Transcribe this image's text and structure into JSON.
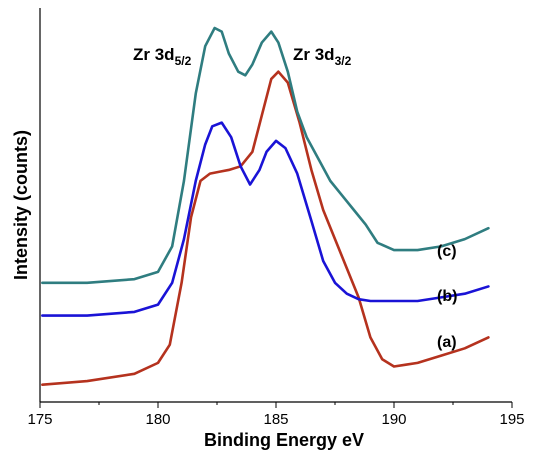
{
  "chart_data": {
    "type": "line",
    "title": "",
    "xlabel": "Binding Energy eV",
    "ylabel": "Intensity (counts)",
    "xlim": [
      175,
      195
    ],
    "ylim": [
      0,
      100
    ],
    "xticks": [
      "175",
      "180",
      "185",
      "190",
      "195"
    ],
    "yticks_shown": false,
    "grid": false,
    "legend": "none",
    "annotations": [
      {
        "base": "Zr 3d",
        "sub": "5/2",
        "x": 182.6
      },
      {
        "base": "Zr 3d",
        "sub": "3/2",
        "x": 185.6
      }
    ],
    "series": [
      {
        "name": "(a)",
        "color": "#b5321e",
        "x": [
          175.1,
          177,
          179,
          180,
          180.5,
          181,
          181.4,
          181.8,
          182.2,
          182.6,
          183,
          183.5,
          184,
          184.4,
          184.8,
          185.1,
          185.5,
          186,
          186.5,
          187,
          187.5,
          188,
          188.5,
          189,
          189.5,
          190,
          190.5,
          191,
          192,
          193,
          194
        ],
        "y": [
          2,
          3,
          5,
          8,
          13,
          30,
          48,
          58,
          60,
          60.5,
          61,
          62,
          66,
          76,
          86,
          88,
          85,
          74,
          61,
          50,
          42,
          34,
          26,
          15,
          9,
          7,
          7.5,
          8,
          10,
          12,
          15
        ]
      },
      {
        "name": "(b)",
        "color": "#1a13d6",
        "x": [
          175.1,
          177,
          179,
          180,
          180.6,
          181.1,
          181.6,
          182,
          182.3,
          182.7,
          183.1,
          183.5,
          183.9,
          184.3,
          184.6,
          185,
          185.4,
          185.9,
          186.5,
          187,
          187.5,
          188,
          188.5,
          189,
          190,
          191,
          192,
          193,
          194
        ],
        "y": [
          21,
          21,
          22,
          24,
          30,
          42,
          58,
          68,
          73,
          74,
          70,
          62,
          57,
          61,
          66,
          69,
          67,
          60,
          47,
          36,
          30,
          27,
          25.5,
          25,
          25,
          25,
          26,
          27,
          29
        ]
      },
      {
        "name": "(c)",
        "color": "#2f7d80",
        "x": [
          175.1,
          177,
          179,
          180,
          180.6,
          181.1,
          181.6,
          182,
          182.4,
          182.7,
          183,
          183.4,
          183.7,
          184,
          184.4,
          184.8,
          185.1,
          185.5,
          185.9,
          186.3,
          186.8,
          187.3,
          187.8,
          188.3,
          188.8,
          189.3,
          190,
          191,
          192,
          193,
          194
        ],
        "y": [
          30,
          30,
          31,
          33,
          40,
          58,
          82,
          95,
          100,
          99,
          93,
          88,
          87,
          90,
          96,
          99,
          96,
          88,
          77,
          70,
          64,
          58,
          54,
          50,
          46,
          41,
          39,
          39,
          40,
          42,
          45
        ]
      }
    ],
    "series_labels": [
      "(a)",
      "(b)",
      "(c)"
    ]
  }
}
